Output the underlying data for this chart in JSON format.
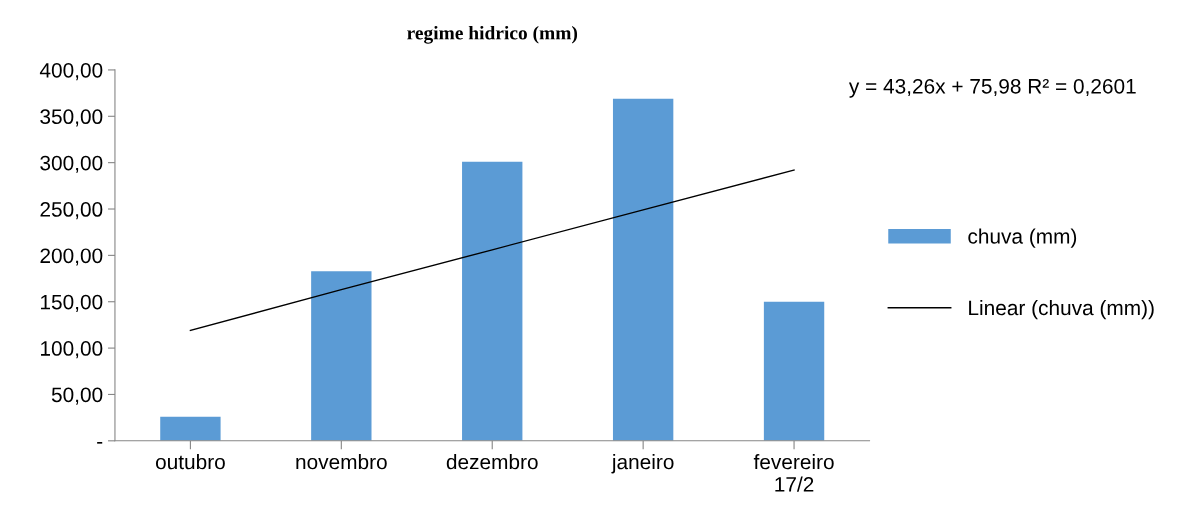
{
  "chart_data": {
    "type": "bar",
    "title": "regime hidrico (mm)",
    "categories": [
      "outubro",
      "novembro",
      "dezembro",
      "janeiro",
      "fevereiro\n17/2"
    ],
    "series": [
      {
        "name": "chuva (mm)",
        "color": "#5b9bd5",
        "values": [
          26,
          183,
          301,
          369,
          150
        ]
      },
      {
        "name": "Linear (chuva (mm))",
        "type": "line",
        "color": "#000000",
        "values": [
          119,
          163,
          206,
          249,
          292
        ]
      }
    ],
    "ylim": [
      0,
      400
    ],
    "yticks": [
      {
        "value": 0,
        "label": "-"
      },
      {
        "value": 50,
        "label": "50,00"
      },
      {
        "value": 100,
        "label": "100,00"
      },
      {
        "value": 150,
        "label": "150,00"
      },
      {
        "value": 200,
        "label": "200,00"
      },
      {
        "value": 250,
        "label": "250,00"
      },
      {
        "value": 300,
        "label": "300,00"
      },
      {
        "value": 350,
        "label": "350,00"
      },
      {
        "value": 400,
        "label": "400,00"
      }
    ],
    "annotations": [
      "y = 43,26x + 75,98 R² = 0,2601"
    ],
    "grid": false,
    "legend": "right"
  }
}
